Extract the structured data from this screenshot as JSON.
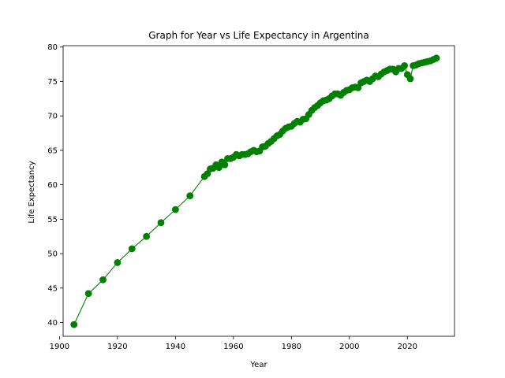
{
  "chart_data": {
    "type": "line",
    "title": "Graph for Year vs Life Expectancy in Argentina",
    "xlabel": "Year",
    "ylabel": "Life Expectancy",
    "xlim": [
      1901.25,
      2036.25
    ],
    "ylim": [
      38.0,
      80.2
    ],
    "xticks": [
      1900,
      1920,
      1940,
      1960,
      1980,
      2000,
      2020
    ],
    "yticks": [
      40,
      45,
      50,
      55,
      60,
      65,
      70,
      75,
      80
    ],
    "grid": false,
    "legend": false,
    "series": [
      {
        "color": "#008000",
        "marker": "circle",
        "x": [
          1905,
          1910,
          1915,
          1920,
          1925,
          1930,
          1935,
          1940,
          1945,
          1950,
          1951,
          1952,
          1953,
          1954,
          1955,
          1956,
          1957,
          1958,
          1959,
          1960,
          1961,
          1962,
          1963,
          1964,
          1965,
          1966,
          1967,
          1968,
          1969,
          1970,
          1971,
          1972,
          1973,
          1974,
          1975,
          1976,
          1977,
          1978,
          1979,
          1980,
          1981,
          1982,
          1983,
          1984,
          1985,
          1986,
          1987,
          1988,
          1989,
          1990,
          1991,
          1992,
          1993,
          1994,
          1995,
          1996,
          1997,
          1998,
          1999,
          2000,
          2001,
          2002,
          2003,
          2004,
          2005,
          2006,
          2007,
          2008,
          2009,
          2010,
          2011,
          2012,
          2013,
          2014,
          2015,
          2016,
          2017,
          2018,
          2019,
          2020,
          2021,
          2022,
          2023,
          2024,
          2025,
          2026,
          2027,
          2028,
          2029,
          2030
        ],
        "y": [
          39.7,
          44.2,
          46.2,
          48.7,
          50.7,
          52.5,
          54.5,
          56.4,
          58.4,
          61.2,
          61.6,
          62.3,
          62.4,
          62.9,
          62.5,
          63.3,
          62.9,
          63.8,
          63.8,
          64.0,
          64.4,
          64.2,
          64.4,
          64.4,
          64.5,
          64.8,
          65.0,
          64.8,
          64.9,
          65.5,
          65.6,
          66.0,
          66.3,
          66.7,
          67.1,
          67.3,
          67.8,
          68.2,
          68.4,
          68.5,
          68.9,
          69.2,
          69.1,
          69.5,
          69.6,
          70.2,
          70.8,
          71.2,
          71.5,
          71.9,
          72.2,
          72.3,
          72.5,
          72.9,
          73.2,
          73.2,
          73.0,
          73.4,
          73.7,
          73.8,
          74.1,
          74.2,
          74.1,
          74.8,
          75.0,
          75.2,
          75.0,
          75.4,
          75.8,
          75.7,
          76.1,
          76.4,
          76.6,
          76.8,
          76.8,
          76.4,
          76.9,
          76.9,
          77.3,
          76.0,
          75.4,
          77.3,
          77.4,
          77.6,
          77.7,
          77.8,
          77.9,
          78.0,
          78.2,
          78.4
        ]
      }
    ]
  }
}
